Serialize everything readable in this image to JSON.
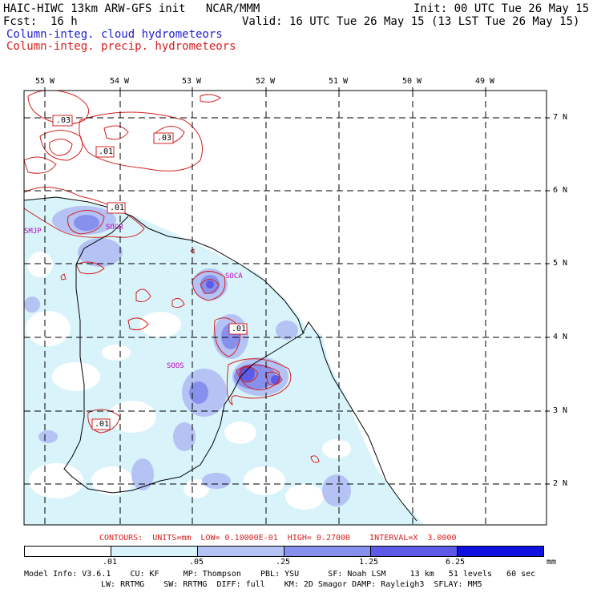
{
  "header": {
    "title": "HAIC-HIWC 13km ARW-GFS init   NCAR/MMM",
    "init": "Init: 00 UTC Tue 26 May 15",
    "fcst": "Fcst:  16 h",
    "valid": "Valid: 16 UTC Tue 26 May 15 (13 LST Tue 26 May 15)",
    "field_cloud": "Column-integ. cloud hydrometeors",
    "field_precip": "Column-integ. precip. hydrometeors"
  },
  "lon_labels": [
    "55 W",
    "54 W",
    "53 W",
    "52 W",
    "51 W",
    "50 W",
    "49 W"
  ],
  "lat_labels": [
    "7 N",
    "6 N",
    "5 N",
    "4 N",
    "3 N",
    "2 N"
  ],
  "stations": [
    "SMJP",
    "SOGR",
    "SOCA",
    "SOOS"
  ],
  "contour_labels": [
    ".03",
    ".03",
    ".01",
    ".01",
    ".01",
    ".01"
  ],
  "contours_line": "CONTOURS:  UNITS=mm  LOW= 0.10000E-01  HIGH= 0.27000    INTERVAL=X  3.0000",
  "colorbar": {
    "ticks": [
      ".01",
      ".05",
      ".25",
      "1.25",
      "6.25"
    ],
    "units": "mm",
    "colors": [
      "#ffffff",
      "#d8f4fa",
      "#b4c2f4",
      "#8890ee",
      "#5c5ae6",
      "#1010e0"
    ]
  },
  "model_info": {
    "line1": "Model Info: V3.6.1    CU: KF     MP: Thompson    PBL: YSU      SF: Noah LSM     13 km   51 levels   60 sec",
    "line2": "LW: RRTMG    SW: RRTMG  DIFF: full    KM: 2D Smagor DAMP: Rayleigh3  SFLAY: MM5"
  }
}
